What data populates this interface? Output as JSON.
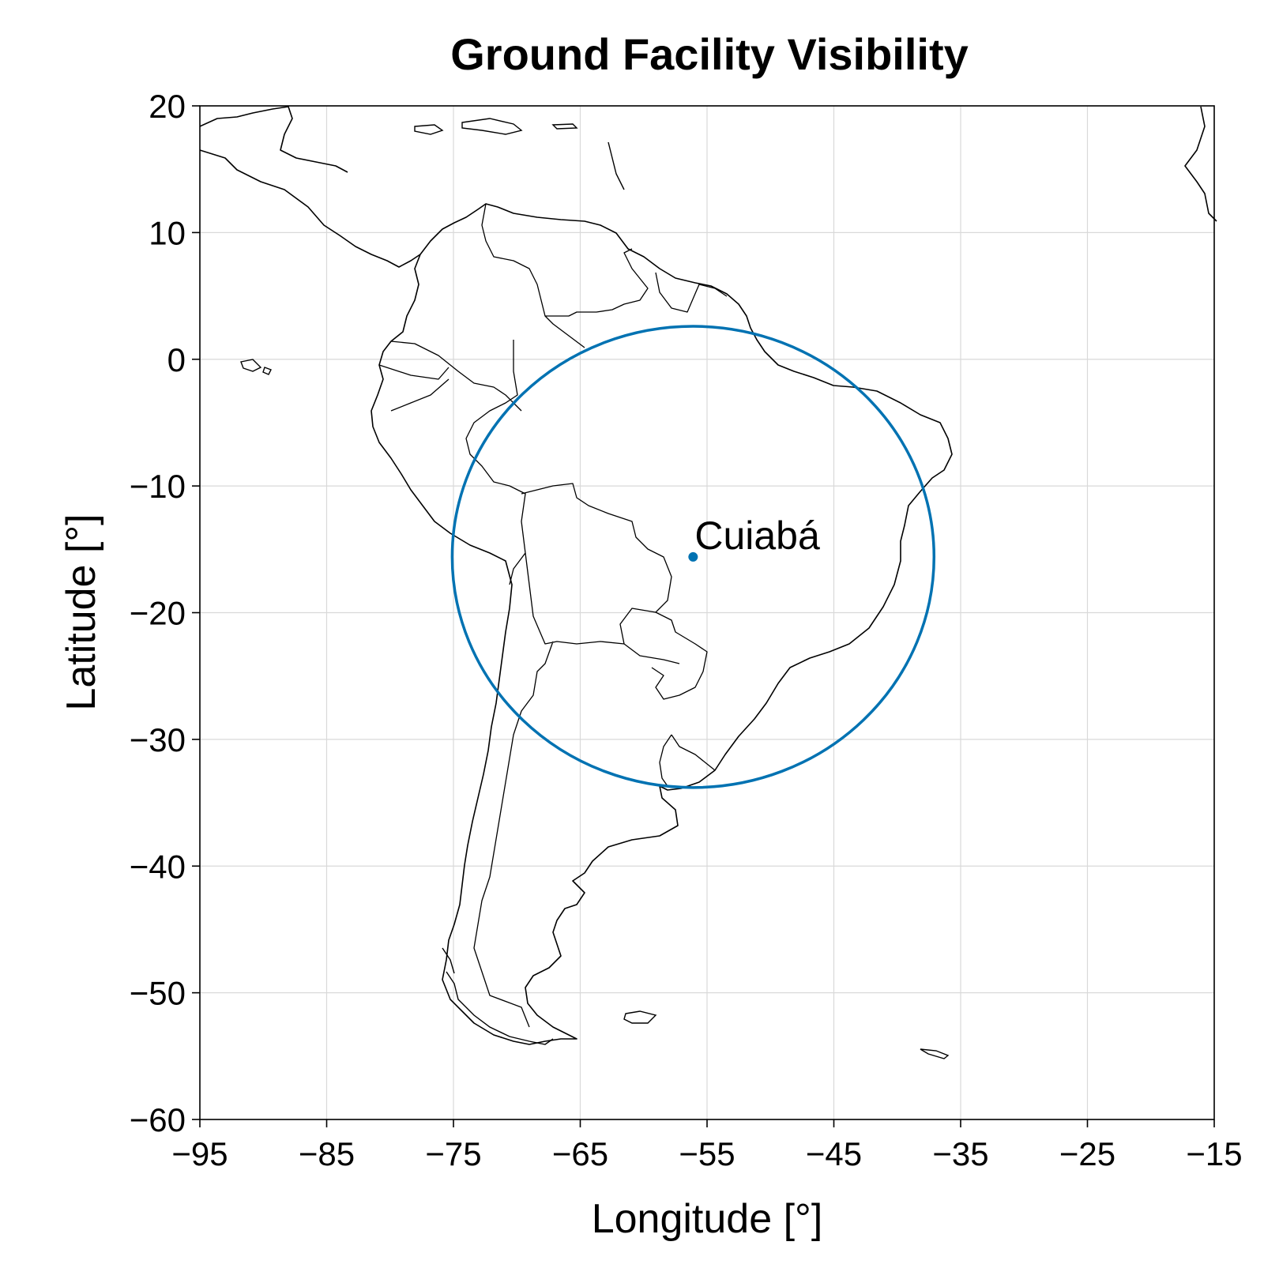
{
  "title": "Ground Facility Visibility",
  "chart_data": {
    "type": "map",
    "title": "Ground Facility Visibility",
    "xlabel": "Longitude [°]",
    "ylabel": "Latitude [°]",
    "xlim": [
      -95,
      -15
    ],
    "ylim": [
      -60,
      20
    ],
    "xticks": [
      -95,
      -85,
      -75,
      -65,
      -55,
      -45,
      -35,
      -25,
      -15
    ],
    "yticks": [
      20,
      10,
      0,
      -10,
      -20,
      -30,
      -40,
      -50,
      -60
    ],
    "xtick_labels": [
      "−95",
      "−85",
      "−75",
      "−65",
      "−55",
      "−45",
      "−35",
      "−25",
      "−15"
    ],
    "ytick_labels": [
      "20",
      "10",
      "0",
      "−10",
      "−20",
      "−30",
      "−40",
      "−50",
      "−60"
    ],
    "grid": true,
    "facility": {
      "name": "Cuiabá",
      "lon": -56.1,
      "lat": -15.6,
      "color": "#0072b2"
    },
    "visibility_circle": {
      "center_lon": -56.1,
      "center_lat": -15.6,
      "lon_radius": 19.0,
      "lat_radius": 18.2,
      "color": "#0072b2"
    }
  }
}
